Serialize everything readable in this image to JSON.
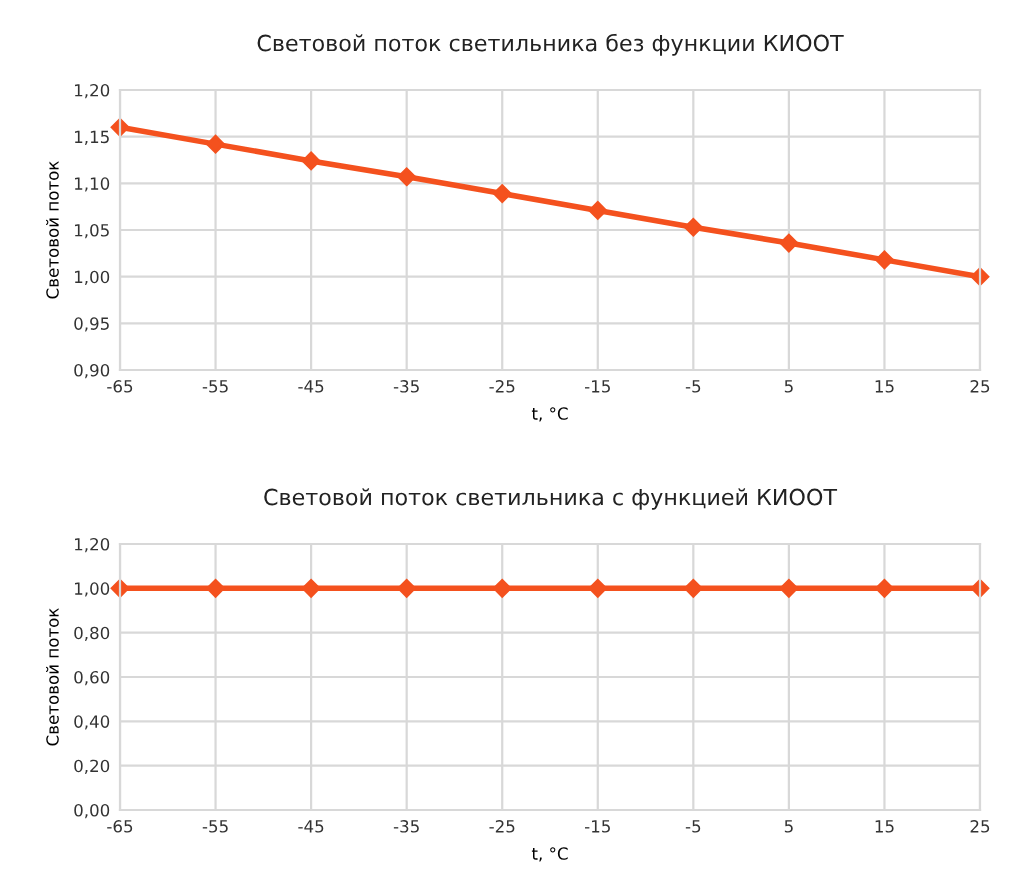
{
  "chart_data": [
    {
      "type": "line",
      "title": "Световой поток светильника без функции КИООТ",
      "xlabel": "t, °C",
      "ylabel": "Световой поток",
      "x": [
        -65,
        -55,
        -45,
        -35,
        -25,
        -15,
        -5,
        5,
        15,
        25
      ],
      "series": [
        {
          "color": "#f4511e",
          "values": [
            1.16,
            1.142,
            1.124,
            1.107,
            1.089,
            1.071,
            1.053,
            1.036,
            1.018,
            1.0
          ]
        }
      ],
      "xlim": [
        -65,
        25
      ],
      "xticks": [
        -65,
        -55,
        -45,
        -35,
        -25,
        -15,
        -5,
        5,
        15,
        25
      ],
      "ylim": [
        0.9,
        1.2
      ],
      "yticks": [
        {
          "value": 0.9,
          "label": "0,90"
        },
        {
          "value": 0.95,
          "label": "0,95"
        },
        {
          "value": 1.0,
          "label": "1,00"
        },
        {
          "value": 1.05,
          "label": "1,05"
        },
        {
          "value": 1.1,
          "label": "1,10"
        },
        {
          "value": 1.15,
          "label": "1,15"
        },
        {
          "value": 1.2,
          "label": "1,20"
        }
      ],
      "grid": true,
      "marker": "diamond",
      "line_style": "solid"
    },
    {
      "type": "line",
      "title": "Световой поток светильника с функцией КИООТ",
      "xlabel": "t, °C",
      "ylabel": "Световой поток",
      "x": [
        -65,
        -55,
        -45,
        -35,
        -25,
        -15,
        -5,
        5,
        15,
        25
      ],
      "series": [
        {
          "color": "#f4511e",
          "values": [
            1.0,
            1.0,
            1.0,
            1.0,
            1.0,
            1.0,
            1.0,
            1.0,
            1.0,
            1.0
          ]
        }
      ],
      "xlim": [
        -65,
        25
      ],
      "xticks": [
        -65,
        -55,
        -45,
        -35,
        -25,
        -15,
        -5,
        5,
        15,
        25
      ],
      "ylim": [
        0.0,
        1.2
      ],
      "yticks": [
        {
          "value": 0.0,
          "label": "0,00"
        },
        {
          "value": 0.2,
          "label": "0,20"
        },
        {
          "value": 0.4,
          "label": "0,40"
        },
        {
          "value": 0.6,
          "label": "0,60"
        },
        {
          "value": 0.8,
          "label": "0,80"
        },
        {
          "value": 1.0,
          "label": "1,00"
        },
        {
          "value": 1.2,
          "label": "1,20"
        }
      ],
      "grid": true,
      "marker": "diamond",
      "line_style": "solid"
    }
  ]
}
